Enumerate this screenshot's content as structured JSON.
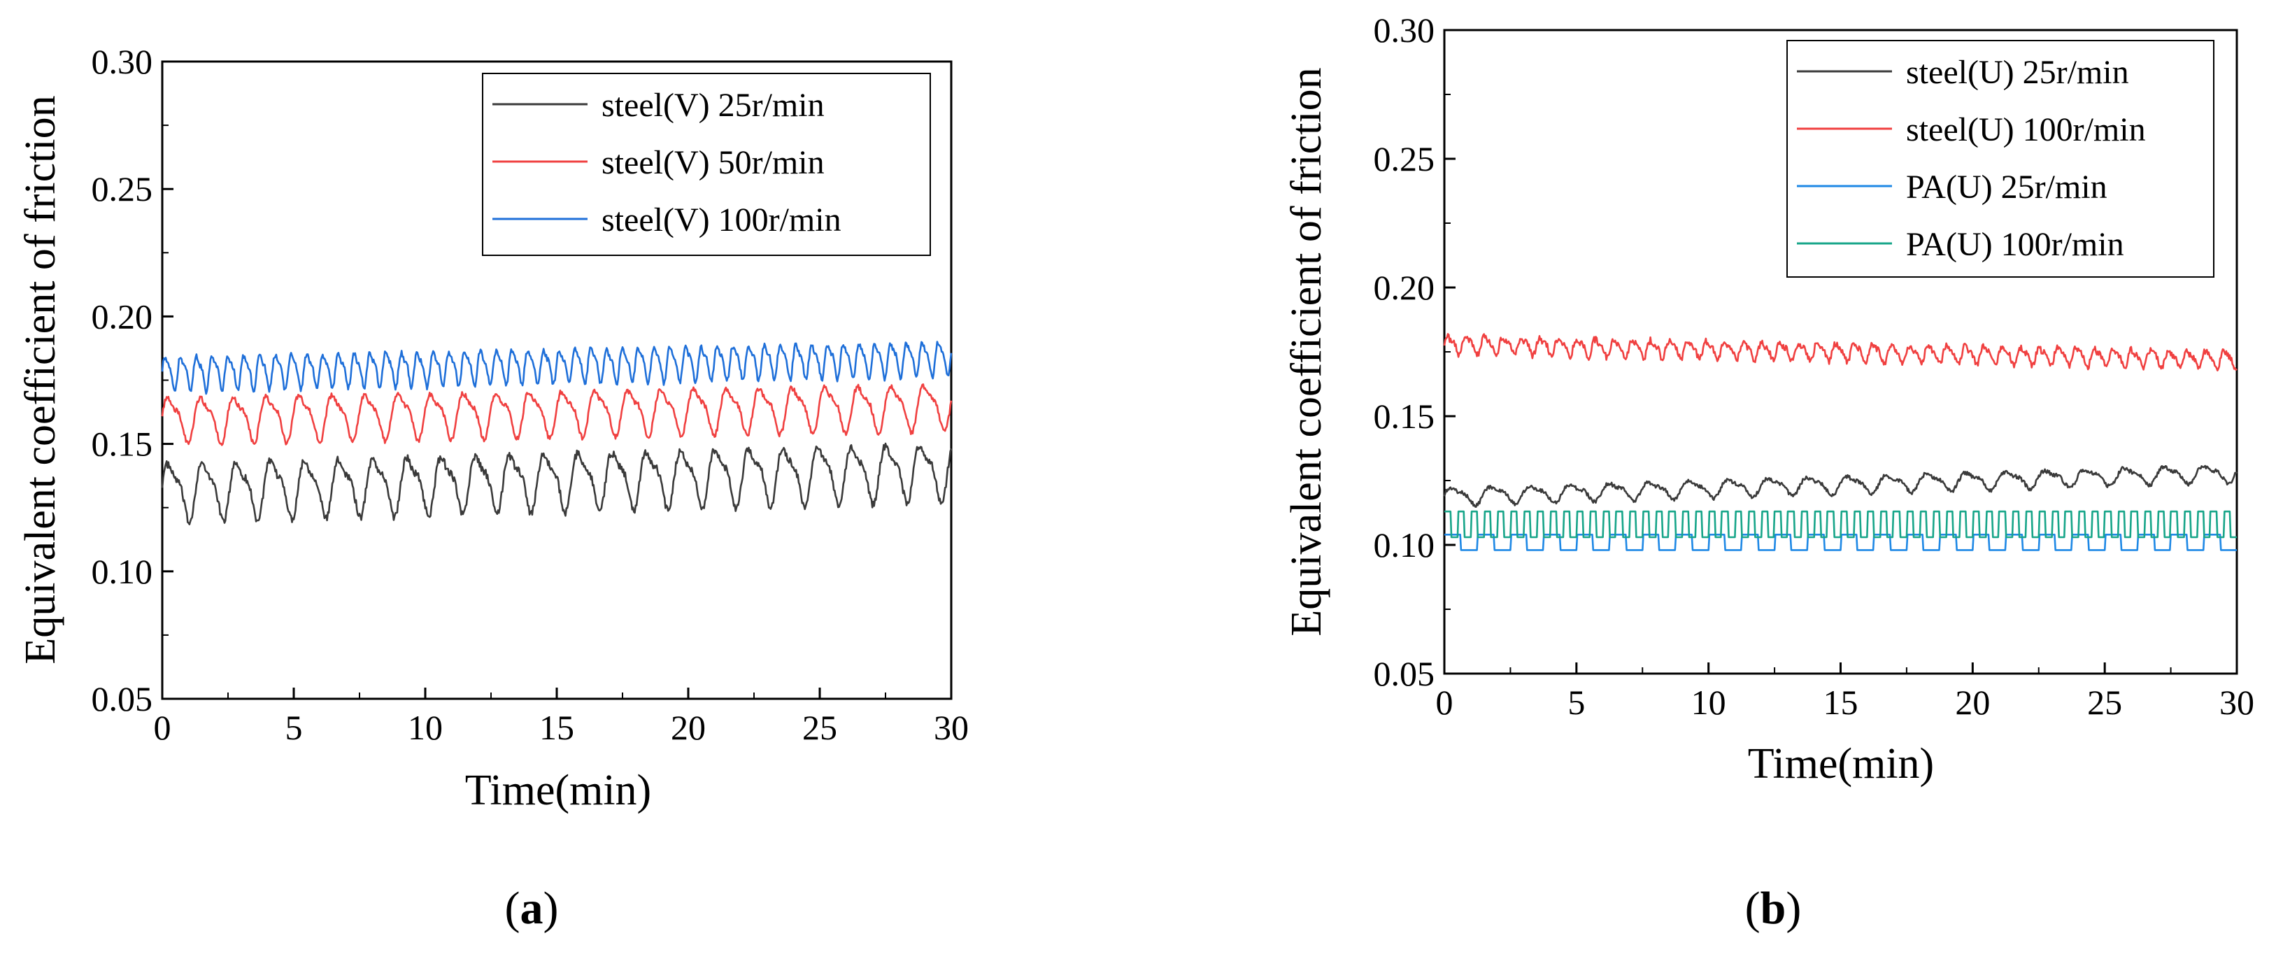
{
  "chart_data": [
    {
      "type": "line",
      "panel_label": "a",
      "xlabel": "Time(min)",
      "ylabel": "Equivalent coefficient of friction",
      "xlim": [
        0,
        30
      ],
      "ylim": [
        0.05,
        0.3
      ],
      "xticks": [
        "0",
        "5",
        "10",
        "15",
        "20",
        "25",
        "30"
      ],
      "yticks": [
        "0.05",
        "0.10",
        "0.15",
        "0.20",
        "0.25",
        "0.30"
      ],
      "legend_position": "top-right",
      "series": [
        {
          "name": "steel(V) 25r/min",
          "color": "#3a3a3a",
          "base": 0.132,
          "end": 0.14,
          "amp": 0.01,
          "period": 1.3,
          "wave": "sine",
          "noise": 0.003
        },
        {
          "name": "steel(V) 50r/min",
          "color": "#f04040",
          "base": 0.16,
          "end": 0.165,
          "amp": 0.008,
          "period": 1.25,
          "wave": "sine",
          "noise": 0.002
        },
        {
          "name": "steel(V) 100r/min",
          "color": "#1e6fd9",
          "base": 0.178,
          "end": 0.184,
          "amp": 0.006,
          "period": 0.6,
          "wave": "sine",
          "noise": 0.002
        }
      ]
    },
    {
      "type": "line",
      "panel_label": "b",
      "xlabel": "Time(min)",
      "ylabel": "Equivalent coefficient of friction",
      "xlim": [
        0,
        30
      ],
      "ylim": [
        0.05,
        0.3
      ],
      "xticks": [
        "0",
        "5",
        "10",
        "15",
        "20",
        "25",
        "30"
      ],
      "yticks": [
        "0.05",
        "0.10",
        "0.15",
        "0.20",
        "0.25",
        "0.30"
      ],
      "legend_position": "top-right",
      "series": [
        {
          "name": "steel(U) 25r/min",
          "color": "#3a3a3a",
          "base": 0.119,
          "end": 0.128,
          "amp": 0.003,
          "period": 1.5,
          "wave": "sine",
          "noise": 0.0015
        },
        {
          "name": "steel(U) 100r/min",
          "color": "#f04040",
          "base": 0.178,
          "end": 0.172,
          "amp": 0.003,
          "period": 0.7,
          "wave": "sine",
          "noise": 0.0025
        },
        {
          "name": "PA(U) 25r/min",
          "color": "#1e88e5",
          "base": 0.101,
          "end": 0.101,
          "amp": 0.003,
          "period": 1.25,
          "wave": "square",
          "noise": 0.0
        },
        {
          "name": "PA(U) 100r/min",
          "color": "#17a589",
          "base": 0.108,
          "end": 0.108,
          "amp": 0.005,
          "period": 0.5,
          "wave": "square",
          "noise": 0.0
        }
      ]
    }
  ]
}
